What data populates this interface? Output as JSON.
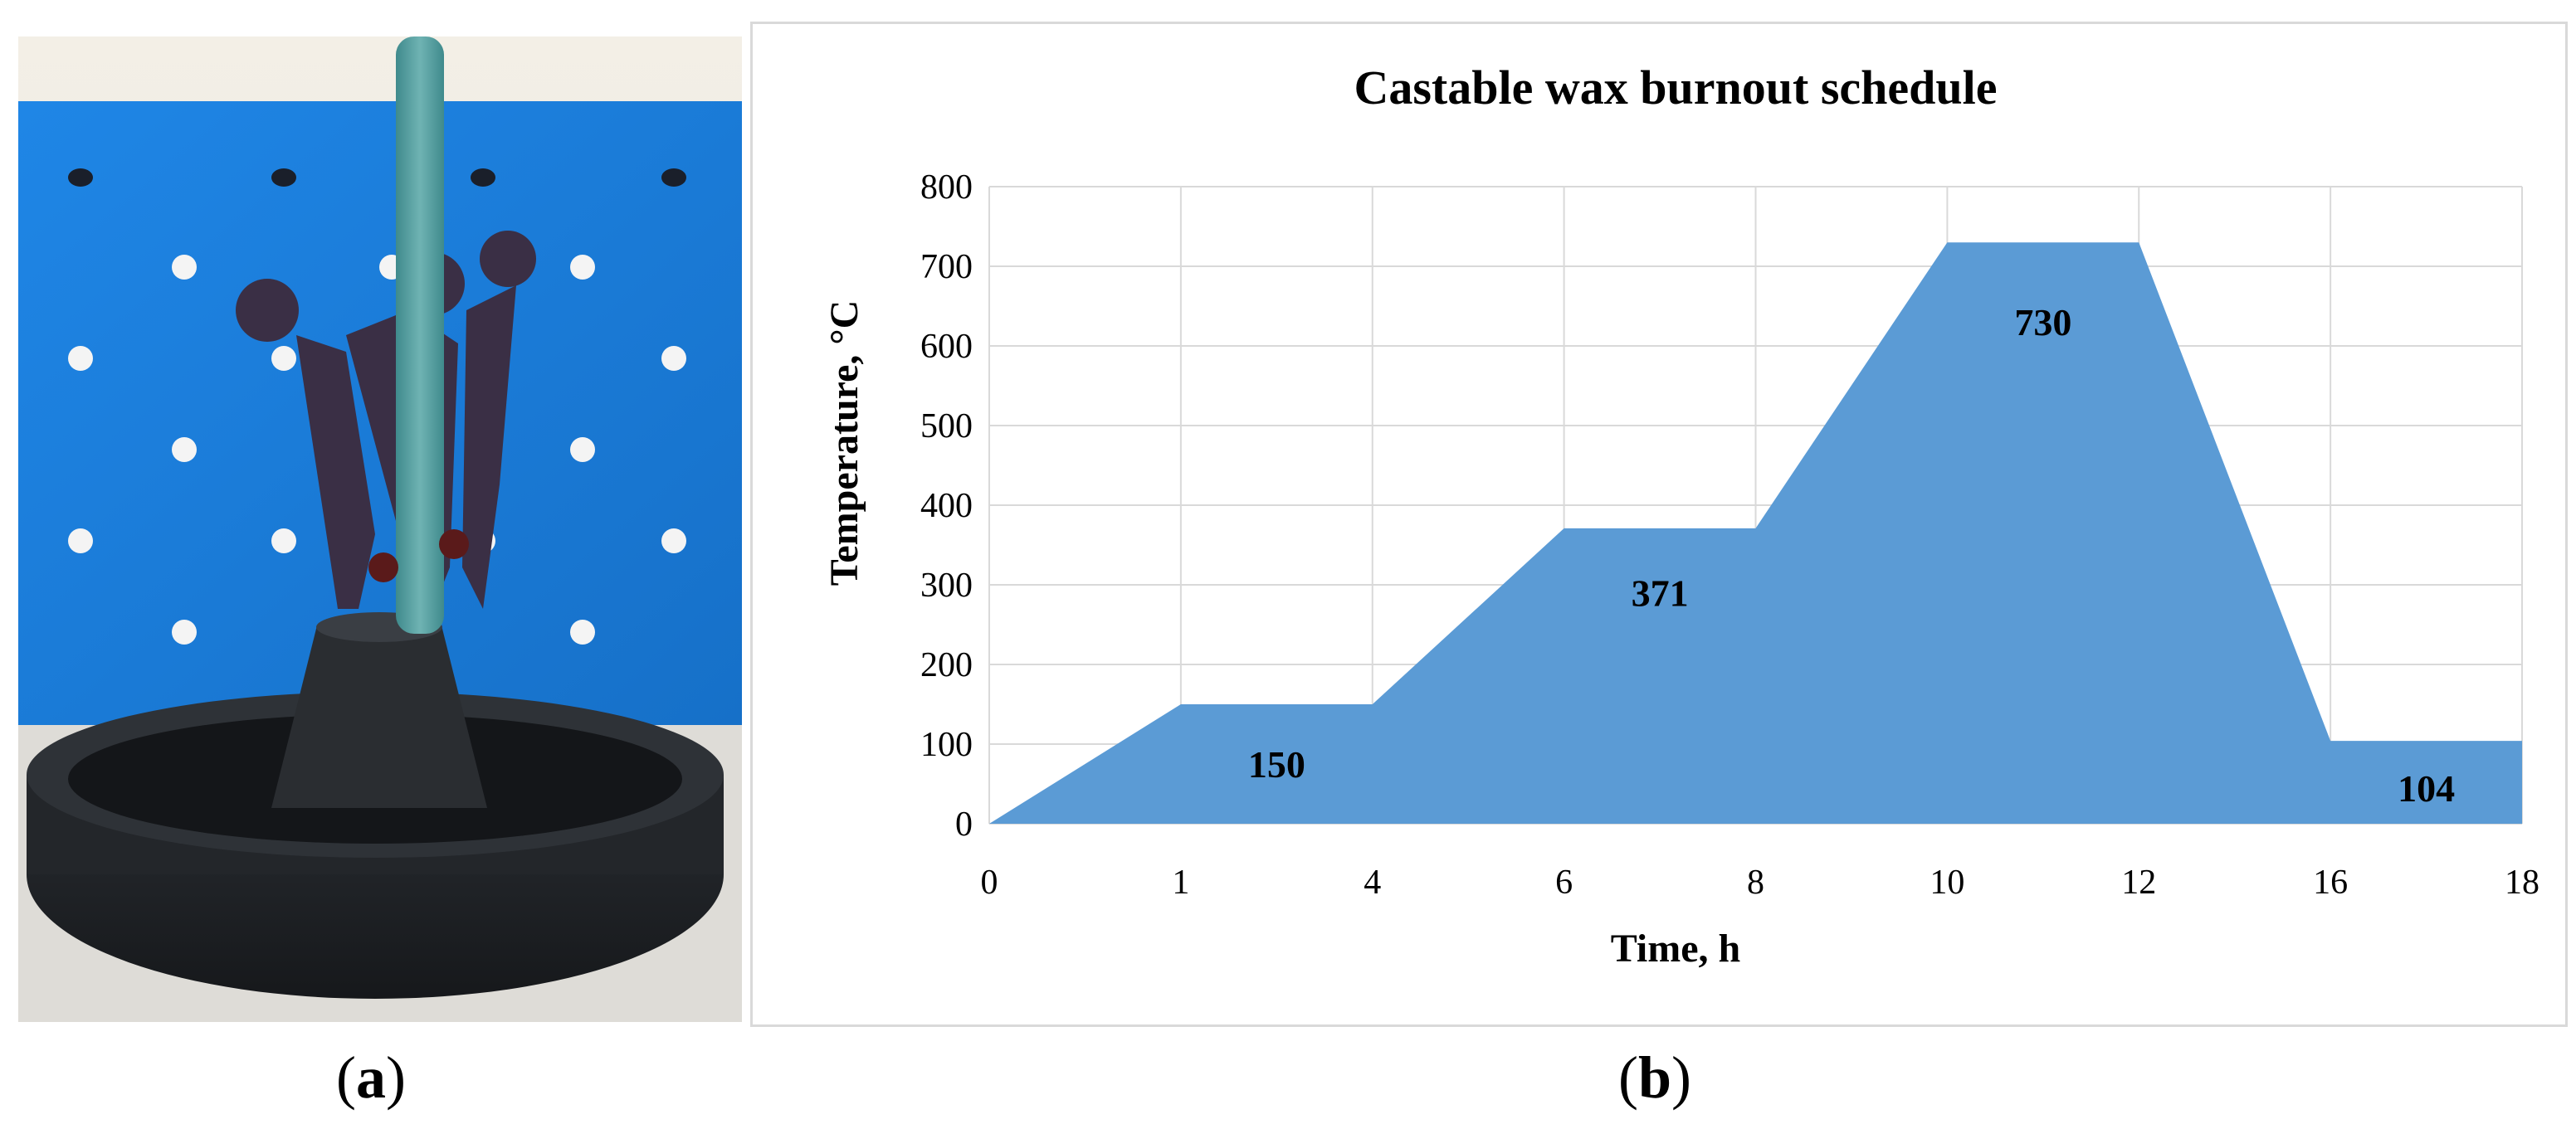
{
  "captions": {
    "a": "a",
    "b": "b"
  },
  "chart_data": {
    "type": "area",
    "title": "Castable wax burnout schedule",
    "xlabel": "Time, h",
    "ylabel": "Temperature, °C",
    "categories": [
      "0",
      "1",
      "4",
      "6",
      "8",
      "10",
      "12",
      "16",
      "18"
    ],
    "values": [
      0,
      150,
      150,
      371,
      371,
      730,
      730,
      104,
      104
    ],
    "ylim": [
      0,
      800
    ],
    "yticks": [
      0,
      100,
      200,
      300,
      400,
      500,
      600,
      700,
      800
    ],
    "grid": true,
    "series_color": "#5b9bd5",
    "data_labels": [
      {
        "text": "150",
        "at_category": 1.5,
        "y": 75
      },
      {
        "text": "371",
        "at_category": 3.5,
        "y": 290
      },
      {
        "text": "730",
        "at_category": 5.5,
        "y": 630
      },
      {
        "text": "104",
        "at_category": 7.5,
        "y": 45
      }
    ]
  }
}
